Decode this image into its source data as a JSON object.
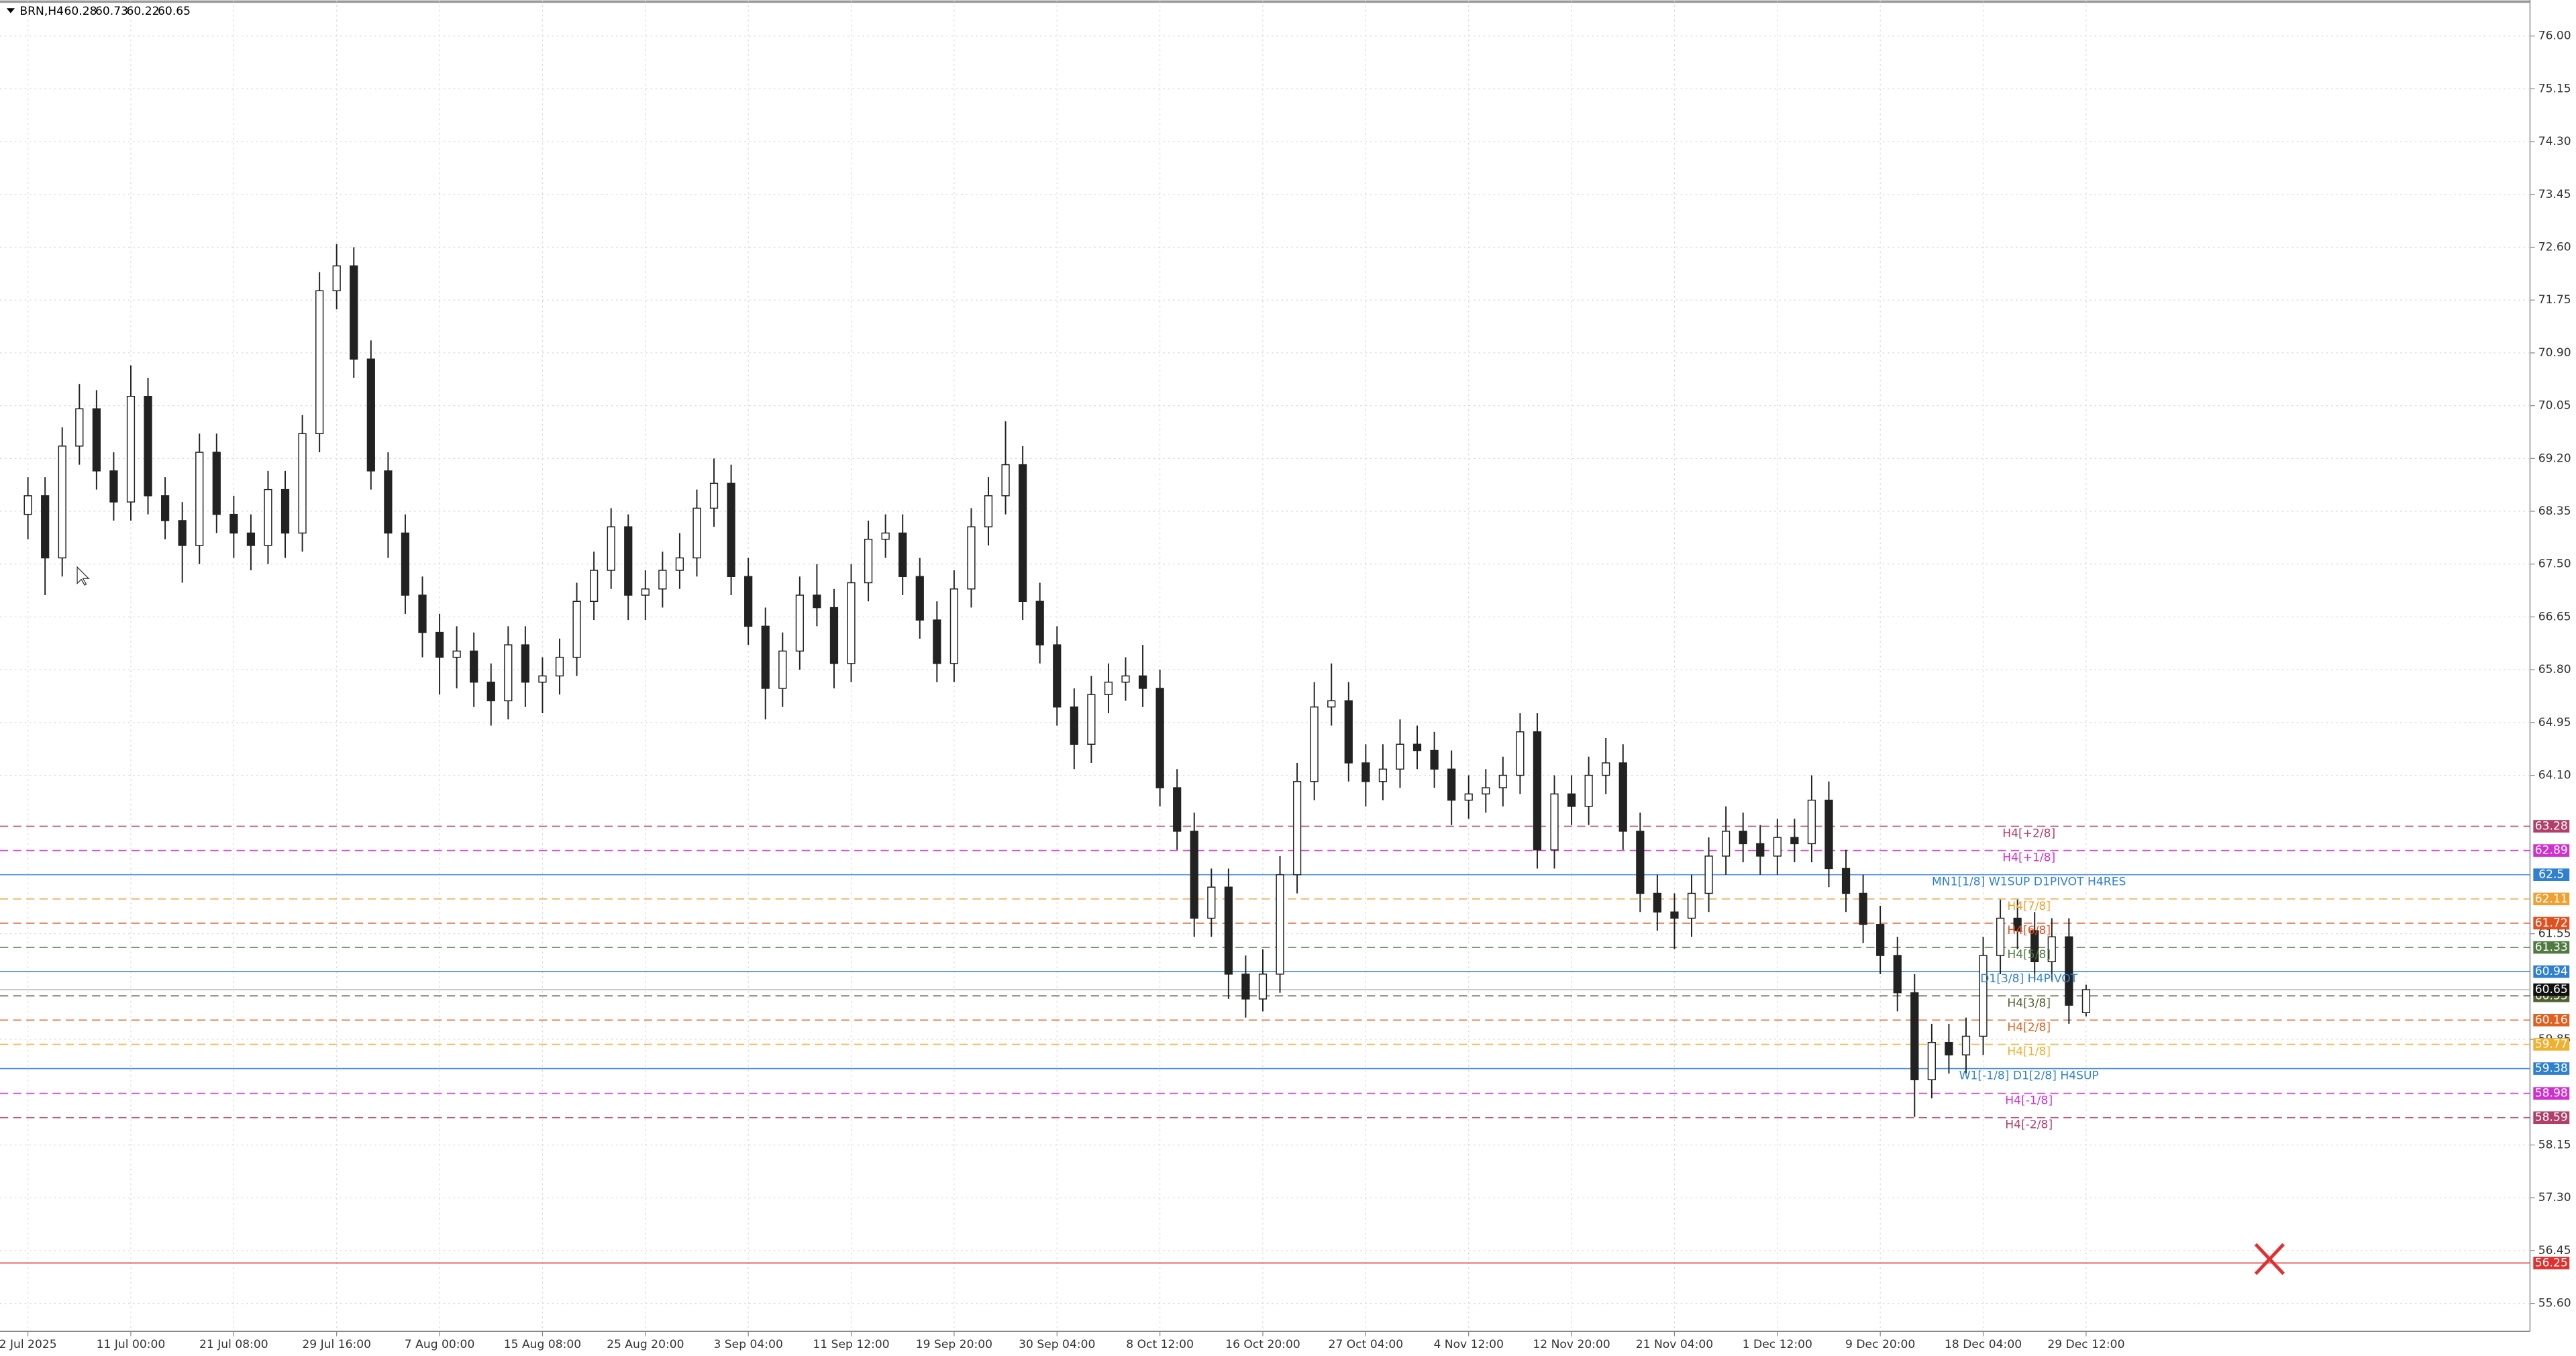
{
  "chart_data": {
    "type": "candlestick",
    "title": "BRN,H4",
    "categories": [
      "2 Jul 2025",
      null,
      null,
      null,
      null,
      null,
      "11 Jul 00:00",
      null,
      null,
      null,
      null,
      null,
      "21 Jul 08:00",
      null,
      null,
      null,
      null,
      null,
      "29 Jul 16:00",
      null,
      null,
      null,
      null,
      null,
      "7 Aug 00:00",
      null,
      null,
      null,
      null,
      null,
      "15 Aug 08:00",
      null,
      null,
      null,
      null,
      null,
      "25 Aug 20:00",
      null,
      null,
      null,
      null,
      null,
      "3 Sep 04:00",
      null,
      null,
      null,
      null,
      null,
      "11 Sep 12:00",
      null,
      null,
      null,
      null,
      null,
      "19 Sep 20:00",
      null,
      null,
      null,
      null,
      null,
      "30 Sep 04:00",
      null,
      null,
      null,
      null,
      null,
      "8 Oct 12:00",
      null,
      null,
      null,
      null,
      null,
      "16 Oct 20:00",
      null,
      null,
      null,
      null,
      null,
      "27 Oct 04:00",
      null,
      null,
      null,
      null,
      null,
      "4 Nov 12:00",
      null,
      null,
      null,
      null,
      null,
      "12 Nov 20:00",
      null,
      null,
      null,
      null,
      null,
      "21 Nov 04:00",
      null,
      null,
      null,
      null,
      null,
      "1 Dec 12:00",
      null,
      null,
      null,
      null,
      null,
      "9 Dec 20:00",
      null,
      null,
      null,
      null,
      null,
      "18 Dec 04:00",
      null,
      null,
      null,
      null,
      null,
      "29 Dec 12:00"
    ],
    "open": [
      68.3,
      68.6,
      67.6,
      69.4,
      70.0,
      69.0,
      68.5,
      70.2,
      68.6,
      68.2,
      67.8,
      69.3,
      68.3,
      68.0,
      67.8,
      68.7,
      68.0,
      69.6,
      71.9,
      72.3,
      70.8,
      69.0,
      68.0,
      67.0,
      66.4,
      66.0,
      66.1,
      65.6,
      65.3,
      66.2,
      65.6,
      65.7,
      66.0,
      66.9,
      67.4,
      68.1,
      67.0,
      67.1,
      67.4,
      67.6,
      68.4,
      68.8,
      67.3,
      66.5,
      65.5,
      66.1,
      67.0,
      66.8,
      65.9,
      67.2,
      67.9,
      68.0,
      67.3,
      66.6,
      65.9,
      67.1,
      68.1,
      68.6,
      69.1,
      66.9,
      66.2,
      65.2,
      64.6,
      65.4,
      65.6,
      65.7,
      65.5,
      63.9,
      63.2,
      61.8,
      62.3,
      60.9,
      60.5,
      60.9,
      62.5,
      64.0,
      65.2,
      65.3,
      64.3,
      64.0,
      64.2,
      64.6,
      64.5,
      64.2,
      63.7,
      63.8,
      63.9,
      64.1,
      64.8,
      62.9,
      63.8,
      63.6,
      64.1,
      64.3,
      63.2,
      62.2,
      61.9,
      61.8,
      62.2,
      62.8,
      63.2,
      63.0,
      62.8,
      63.1,
      63.0,
      63.7,
      62.6,
      62.2,
      61.7,
      61.2,
      60.6,
      59.2,
      59.8,
      59.6,
      59.9,
      61.2,
      61.8,
      61.6,
      61.1,
      61.5,
      60.28
    ],
    "high": [
      68.9,
      68.9,
      69.7,
      70.4,
      70.3,
      69.3,
      70.7,
      70.5,
      68.9,
      68.5,
      69.6,
      69.6,
      68.6,
      68.3,
      69.0,
      69.0,
      69.9,
      72.2,
      72.65,
      72.6,
      71.1,
      69.3,
      68.3,
      67.3,
      66.7,
      66.5,
      66.4,
      65.9,
      66.5,
      66.5,
      66.0,
      66.3,
      67.2,
      67.7,
      68.4,
      68.3,
      67.4,
      67.7,
      68.0,
      68.7,
      69.2,
      69.1,
      67.6,
      66.8,
      66.4,
      67.3,
      67.5,
      67.1,
      67.5,
      68.2,
      68.3,
      68.3,
      67.6,
      66.9,
      67.4,
      68.4,
      68.9,
      69.8,
      69.4,
      67.2,
      66.5,
      65.5,
      65.7,
      65.9,
      66.0,
      66.2,
      65.8,
      64.2,
      63.5,
      62.6,
      62.6,
      61.2,
      61.3,
      62.8,
      64.3,
      65.6,
      65.9,
      65.6,
      64.6,
      64.6,
      65.0,
      64.9,
      64.8,
      64.5,
      64.1,
      64.2,
      64.4,
      65.1,
      65.1,
      64.1,
      64.1,
      64.4,
      64.7,
      64.6,
      63.5,
      62.5,
      62.2,
      62.5,
      63.1,
      63.6,
      63.5,
      63.3,
      63.4,
      63.4,
      64.1,
      64.0,
      62.9,
      62.5,
      62.0,
      61.5,
      60.9,
      60.1,
      60.1,
      60.2,
      61.5,
      62.1,
      62.1,
      61.9,
      61.8,
      61.8,
      60.73
    ],
    "low": [
      67.9,
      67.0,
      67.3,
      69.1,
      68.7,
      68.2,
      68.2,
      68.3,
      67.9,
      67.2,
      67.5,
      68.0,
      67.6,
      67.4,
      67.5,
      67.6,
      67.7,
      69.3,
      71.6,
      70.5,
      68.7,
      67.6,
      66.7,
      66.0,
      65.4,
      65.5,
      65.2,
      64.9,
      65.0,
      65.2,
      65.1,
      65.4,
      65.7,
      66.6,
      67.1,
      66.6,
      66.6,
      66.8,
      67.1,
      67.3,
      68.1,
      67.0,
      66.2,
      65.0,
      65.2,
      65.8,
      66.5,
      65.5,
      65.6,
      66.9,
      67.6,
      67.0,
      66.3,
      65.6,
      65.6,
      66.8,
      67.8,
      68.3,
      66.6,
      65.9,
      64.9,
      64.2,
      64.3,
      65.1,
      65.3,
      65.2,
      63.6,
      62.9,
      61.5,
      61.5,
      60.5,
      60.2,
      60.3,
      60.6,
      62.2,
      63.7,
      64.9,
      64.0,
      63.6,
      63.7,
      63.9,
      64.2,
      63.9,
      63.3,
      63.4,
      63.5,
      63.6,
      63.8,
      62.6,
      62.6,
      63.3,
      63.3,
      63.8,
      62.9,
      61.9,
      61.6,
      61.3,
      61.5,
      61.9,
      62.5,
      62.7,
      62.5,
      62.5,
      62.7,
      62.7,
      62.3,
      61.9,
      61.4,
      60.9,
      60.3,
      58.6,
      58.9,
      59.3,
      59.3,
      59.6,
      60.9,
      61.3,
      60.8,
      60.8,
      60.1,
      60.22
    ],
    "close": [
      68.6,
      67.6,
      69.4,
      70.0,
      69.0,
      68.5,
      70.2,
      68.6,
      68.2,
      67.8,
      69.3,
      68.3,
      68.0,
      67.8,
      68.7,
      68.0,
      69.6,
      71.9,
      72.3,
      70.8,
      69.0,
      68.0,
      67.0,
      66.4,
      66.0,
      66.1,
      65.6,
      65.3,
      66.2,
      65.6,
      65.7,
      66.0,
      66.9,
      67.4,
      68.1,
      67.0,
      67.1,
      67.4,
      67.6,
      68.4,
      68.8,
      67.3,
      66.5,
      65.5,
      66.1,
      67.0,
      66.8,
      65.9,
      67.2,
      67.9,
      68.0,
      67.3,
      66.6,
      65.9,
      67.1,
      68.1,
      68.6,
      69.1,
      66.9,
      66.2,
      65.2,
      64.6,
      65.4,
      65.6,
      65.7,
      65.5,
      63.9,
      63.2,
      61.8,
      62.3,
      60.9,
      60.5,
      60.9,
      62.5,
      64.0,
      65.2,
      65.3,
      64.3,
      64.0,
      64.2,
      64.6,
      64.5,
      64.2,
      63.7,
      63.8,
      63.9,
      64.1,
      64.8,
      62.9,
      63.8,
      63.6,
      64.1,
      64.3,
      63.2,
      62.2,
      61.9,
      61.8,
      62.2,
      62.8,
      63.2,
      63.0,
      62.8,
      63.1,
      63.0,
      63.7,
      62.6,
      62.2,
      61.7,
      61.2,
      60.6,
      59.2,
      59.8,
      59.6,
      59.9,
      61.2,
      61.8,
      61.6,
      61.1,
      61.5,
      60.4,
      60.65
    ],
    "ylim": [
      55.15,
      76.58
    ],
    "yticks": [
      {
        "value": 76,
        "label": "76.00"
      },
      {
        "value": 75.15,
        "label": "75.15"
      },
      {
        "value": 74.3,
        "label": "74.30"
      },
      {
        "value": 73.45,
        "label": "73.45"
      },
      {
        "value": 72.6,
        "label": "72.60"
      },
      {
        "value": 71.75,
        "label": "71.75"
      },
      {
        "value": 70.9,
        "label": "70.90"
      },
      {
        "value": 70.05,
        "label": "70.05"
      },
      {
        "value": 69.2,
        "label": "69.20"
      },
      {
        "value": 68.35,
        "label": "68.35"
      },
      {
        "value": 67.5,
        "label": "67.50"
      },
      {
        "value": 66.65,
        "label": "66.65"
      },
      {
        "value": 65.8,
        "label": "65.80"
      },
      {
        "value": 64.95,
        "label": "64.95"
      },
      {
        "value": 64.1,
        "label": "64.10"
      },
      {
        "value": 61.55,
        "label": "61.55"
      },
      {
        "value": 59.85,
        "label": "59.85"
      },
      {
        "value": 58.15,
        "label": "58.15"
      },
      {
        "value": 57.3,
        "label": "57.30"
      },
      {
        "value": 56.45,
        "label": "56.45"
      },
      {
        "value": 55.6,
        "label": "55.60"
      }
    ],
    "grid": true,
    "up_color": "#ffffff",
    "down_color": "#222222",
    "levels": [
      {
        "label": "H4[+2/8]",
        "value": 63.28,
        "color": "#b0406a",
        "dash": true
      },
      {
        "label": "H4[+1/8]",
        "value": 62.89,
        "color": "#d030d0",
        "dash": true
      },
      {
        "label": "MN1[1/8] W1SUP D1PIVOT H4RES",
        "value": 62.5,
        "color": "#3080d0",
        "dash": false
      },
      {
        "label": "H4[7/8]",
        "value": 62.11,
        "color": "#f0a030",
        "dash": true
      },
      {
        "label": "H4[6/8]",
        "value": 61.72,
        "color": "#e05020",
        "dash": true
      },
      {
        "label": "H4[5/8]",
        "value": 61.33,
        "color": "#507a40",
        "dash": true
      },
      {
        "label": "D1[3/8] H4PIVOT",
        "value": 60.94,
        "color": "#3080d0",
        "dash": false
      },
      {
        "label": "H4[3/8]",
        "value": 60.55,
        "color": "#506030",
        "dash": true
      },
      {
        "label": "H4[2/8]",
        "value": 60.16,
        "color": "#e06020",
        "dash": true
      },
      {
        "label": "H4[1/8]",
        "value": 59.77,
        "color": "#f0b030",
        "dash": true
      },
      {
        "label": "W1[-1/8] D1[2/8] H4SUP",
        "value": 59.38,
        "color": "#3080d0",
        "dash": false
      },
      {
        "label": "H4[-1/8]",
        "value": 58.98,
        "color": "#d030d0",
        "dash": true
      },
      {
        "label": "H4[-2/8]",
        "value": 58.59,
        "color": "#b0406a",
        "dash": true
      },
      {
        "value": 56.25,
        "color": "#e03030",
        "dash": false
      }
    ]
  }
}
